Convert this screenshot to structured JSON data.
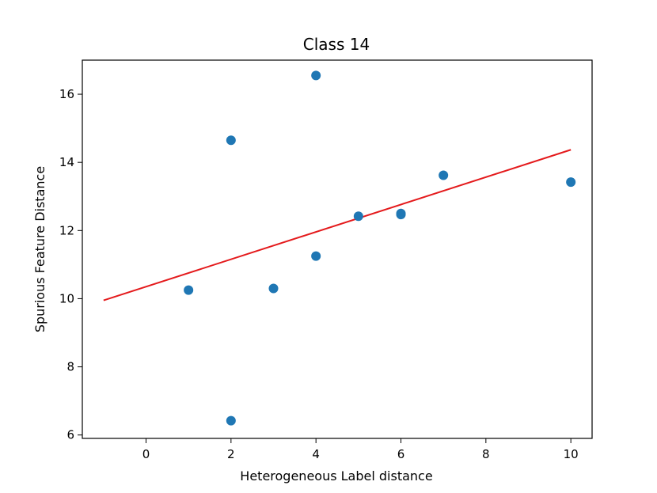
{
  "chart_data": {
    "type": "scatter",
    "title": "Class 14",
    "xlabel": "Heterogeneous Label distance",
    "ylabel": "Spurious Feature Distance",
    "xlim": [
      -1.5,
      10.5
    ],
    "ylim": [
      5.9,
      17.0
    ],
    "xticks": [
      0,
      2,
      4,
      6,
      8,
      10
    ],
    "yticks": [
      6,
      8,
      10,
      12,
      14,
      16
    ],
    "grid": false,
    "points": [
      {
        "x": 1,
        "y": 10.25
      },
      {
        "x": 2,
        "y": 14.65
      },
      {
        "x": 2,
        "y": 6.42
      },
      {
        "x": 3,
        "y": 10.3
      },
      {
        "x": 4,
        "y": 16.55
      },
      {
        "x": 4,
        "y": 11.25
      },
      {
        "x": 5,
        "y": 12.42
      },
      {
        "x": 6,
        "y": 12.5
      },
      {
        "x": 6,
        "y": 12.47
      },
      {
        "x": 7,
        "y": 13.62
      },
      {
        "x": 10,
        "y": 13.42
      }
    ],
    "trendline": {
      "x": [
        -1,
        10
      ],
      "y": [
        9.95,
        14.37
      ],
      "color": "#e41a1c"
    },
    "point_color": "#1f77b4"
  }
}
